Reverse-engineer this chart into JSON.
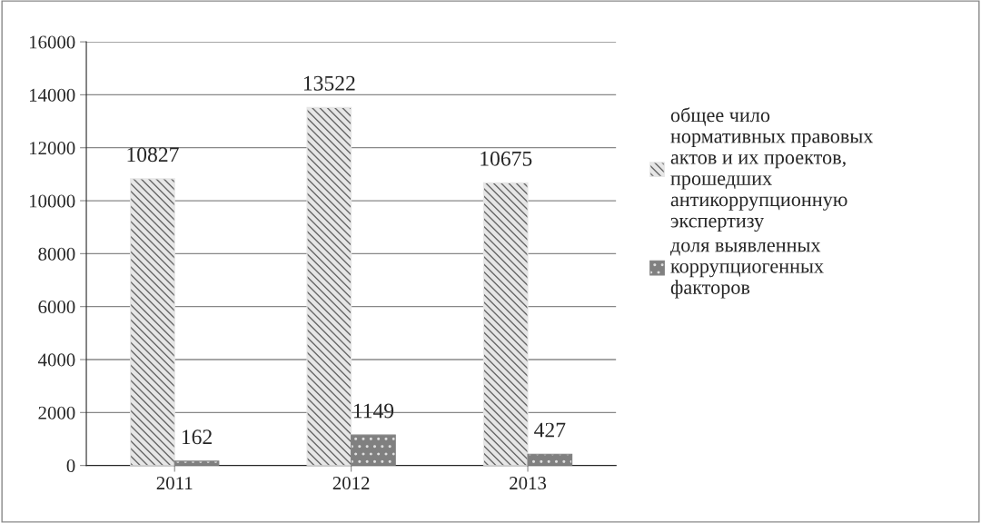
{
  "chart_data": {
    "type": "bar",
    "categories": [
      "2011",
      "2012",
      "2013"
    ],
    "series": [
      {
        "name": "общее чило нормативных правовых актов и их проектов, прошедших антикоррупционную экспертизу",
        "color": "#e6e6e6",
        "values": [
          10827,
          13522,
          10675
        ]
      },
      {
        "name": "доля выявленных коррупциогенных факторов",
        "color": "#808080",
        "values": [
          162,
          1149,
          427
        ]
      }
    ],
    "ylim": [
      0,
      16000
    ],
    "yticks": [
      0,
      2000,
      4000,
      6000,
      8000,
      10000,
      12000,
      14000,
      16000
    ],
    "grid": "y",
    "legend": "right",
    "data_labels": true
  }
}
